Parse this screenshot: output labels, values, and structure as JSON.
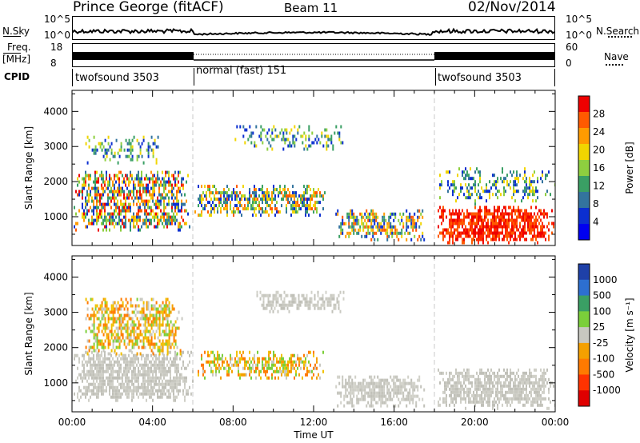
{
  "header": {
    "station": "Prince George (fitACF)",
    "beam": "Beam 11",
    "date": "02/Nov/2014"
  },
  "strips": {
    "nsky_label": "N.Sky",
    "nsky_ticks": [
      "10^5",
      "10^0"
    ],
    "nsearch_label": "N.Search",
    "nsearch_ticks": [
      "10^5",
      "10^0"
    ],
    "freq_label_1": "Freq.",
    "freq_label_2": "[MHz]",
    "freq_ticks": [
      "18",
      "8"
    ],
    "nave_label": "Nave",
    "nave_ticks": [
      "60",
      "0"
    ],
    "cpid_label": "CPID",
    "cpid_segments": [
      {
        "label": "twofsound 3503",
        "start_h": 0,
        "end_h": 6
      },
      {
        "label": "normal (fast) 151",
        "start_h": 6,
        "end_h": 18
      },
      {
        "label": "twofsound 3503",
        "start_h": 18,
        "end_h": 24
      }
    ]
  },
  "chart_data": [
    {
      "type": "heatmap",
      "title": "",
      "xlabel": "",
      "ylabel": "Slant Range [km]",
      "xlim": [
        0,
        24
      ],
      "ylim": [
        180,
        4600
      ],
      "yticks": [
        "1000",
        "2000",
        "3000",
        "4000"
      ],
      "colorbar": {
        "label": "Power [dB]",
        "ticks": [
          "28",
          "24",
          "20",
          "16",
          "12",
          "8",
          "4"
        ],
        "colors": [
          "#ee0000",
          "#ff5a00",
          "#ff9b00",
          "#f1d500",
          "#8ecf3f",
          "#3a9f64",
          "#33749e",
          "#0b2fd0",
          "#0000f0"
        ]
      },
      "regions": [
        {
          "t0": 0.0,
          "t1": 6.0,
          "r0": 600,
          "r1": 2400,
          "level": "high"
        },
        {
          "t0": 0.5,
          "t1": 4.5,
          "r0": 2500,
          "r1": 3400,
          "level": "low"
        },
        {
          "t0": 6.0,
          "t1": 12.6,
          "r0": 1000,
          "r1": 2000,
          "level": "mid"
        },
        {
          "t0": 8.0,
          "t1": 13.5,
          "r0": 2900,
          "r1": 3700,
          "level": "low"
        },
        {
          "t0": 13.0,
          "t1": 17.5,
          "r0": 300,
          "r1": 1300,
          "level": "mid"
        },
        {
          "t0": 18.0,
          "t1": 24.0,
          "r0": 250,
          "r1": 1400,
          "level": "very-high"
        },
        {
          "t0": 18.0,
          "t1": 24.0,
          "r0": 1400,
          "r1": 2500,
          "level": "low"
        }
      ]
    },
    {
      "type": "heatmap",
      "title": "",
      "xlabel": "Time UT",
      "ylabel": "Slant Range [km]",
      "xlim": [
        0,
        24
      ],
      "ylim": [
        180,
        4600
      ],
      "xticks": [
        "00:00",
        "04:00",
        "08:00",
        "12:00",
        "16:00",
        "20:00",
        "00:00"
      ],
      "yticks": [
        "1000",
        "2000",
        "3000",
        "4000"
      ],
      "colorbar": {
        "label": "Velocity [m s⁻¹]",
        "ticks": [
          "1000",
          "500",
          "100",
          "25",
          "-25",
          "-100",
          "-500",
          "-1000"
        ],
        "colors": [
          "#1e40a8",
          "#2d6fd0",
          "#3a9f64",
          "#7bcf3a",
          "#c8c8c0",
          "#f4a000",
          "#ff7a00",
          "#ff3300",
          "#e00000"
        ]
      },
      "regions": [
        {
          "t0": 0.0,
          "t1": 6.0,
          "r0": 500,
          "r1": 2000,
          "class": "ground-scatter"
        },
        {
          "t0": 0.5,
          "t1": 5.5,
          "r0": 1800,
          "r1": 3500,
          "class": "negative"
        },
        {
          "t0": 6.0,
          "t1": 12.6,
          "r0": 1100,
          "r1": 2000,
          "class": "negative"
        },
        {
          "t0": 9.0,
          "t1": 13.5,
          "r0": 3000,
          "r1": 3700,
          "class": "ground-scatter"
        },
        {
          "t0": 13.0,
          "t1": 17.5,
          "r0": 300,
          "r1": 1300,
          "class": "ground-scatter"
        },
        {
          "t0": 18.0,
          "t1": 24.0,
          "r0": 300,
          "r1": 1500,
          "class": "ground-scatter"
        }
      ]
    }
  ]
}
